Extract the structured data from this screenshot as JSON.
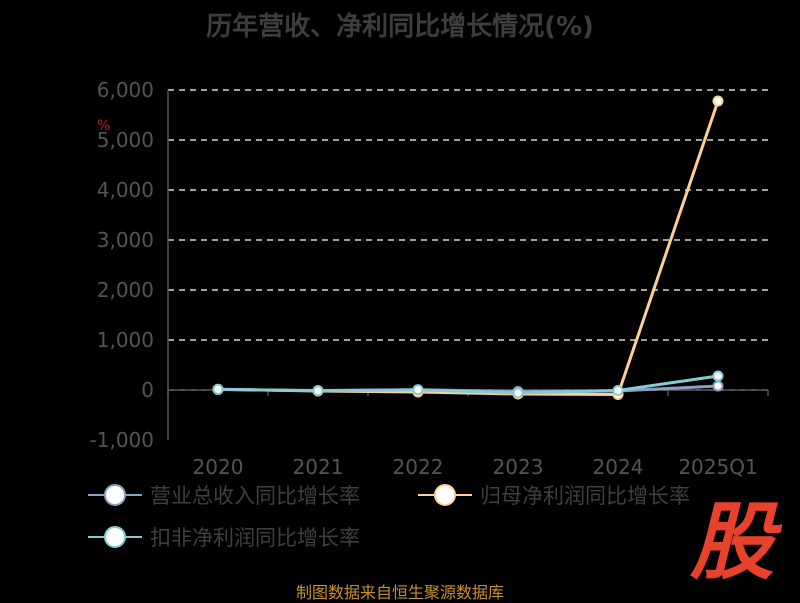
{
  "title": "历年营收、净利同比增长情况(%)",
  "source_note": "制图数据来自恒生聚源数据库",
  "brand_logo": "股",
  "corner_mark": "%",
  "colors": {
    "background": "#000000",
    "grid": "#ffffff",
    "revenue": "#8aa1c7",
    "net_profit": "#ffcf96",
    "deducted_profit": "#86cbd6"
  },
  "chart_data": {
    "type": "line",
    "title": "历年营收、净利同比增长情况(%)",
    "categories": [
      "2020",
      "2021",
      "2022",
      "2023",
      "2024",
      "2025Q1"
    ],
    "ylim": [
      -1000,
      6000
    ],
    "yticks": [
      "-1,000",
      "0",
      "1,000",
      "2,000",
      "3,000",
      "4,000",
      "5,000",
      "6,000"
    ],
    "ytick_values": [
      -1000,
      0,
      1000,
      2000,
      3000,
      4000,
      5000,
      6000
    ],
    "grid": true,
    "legend_position": "bottom",
    "series": [
      {
        "name": "营业总收入同比增长率",
        "color": "#8aa1c7",
        "values": [
          10,
          -10,
          5,
          -30,
          -20,
          80
        ]
      },
      {
        "name": "归母净利润同比增长率",
        "color": "#ffcf96",
        "values": [
          15,
          -20,
          -40,
          -80,
          -90,
          5780
        ]
      },
      {
        "name": "扣非净利润同比增长率",
        "color": "#86cbd6",
        "values": [
          12,
          -15,
          5,
          -60,
          -10,
          280
        ]
      }
    ]
  }
}
